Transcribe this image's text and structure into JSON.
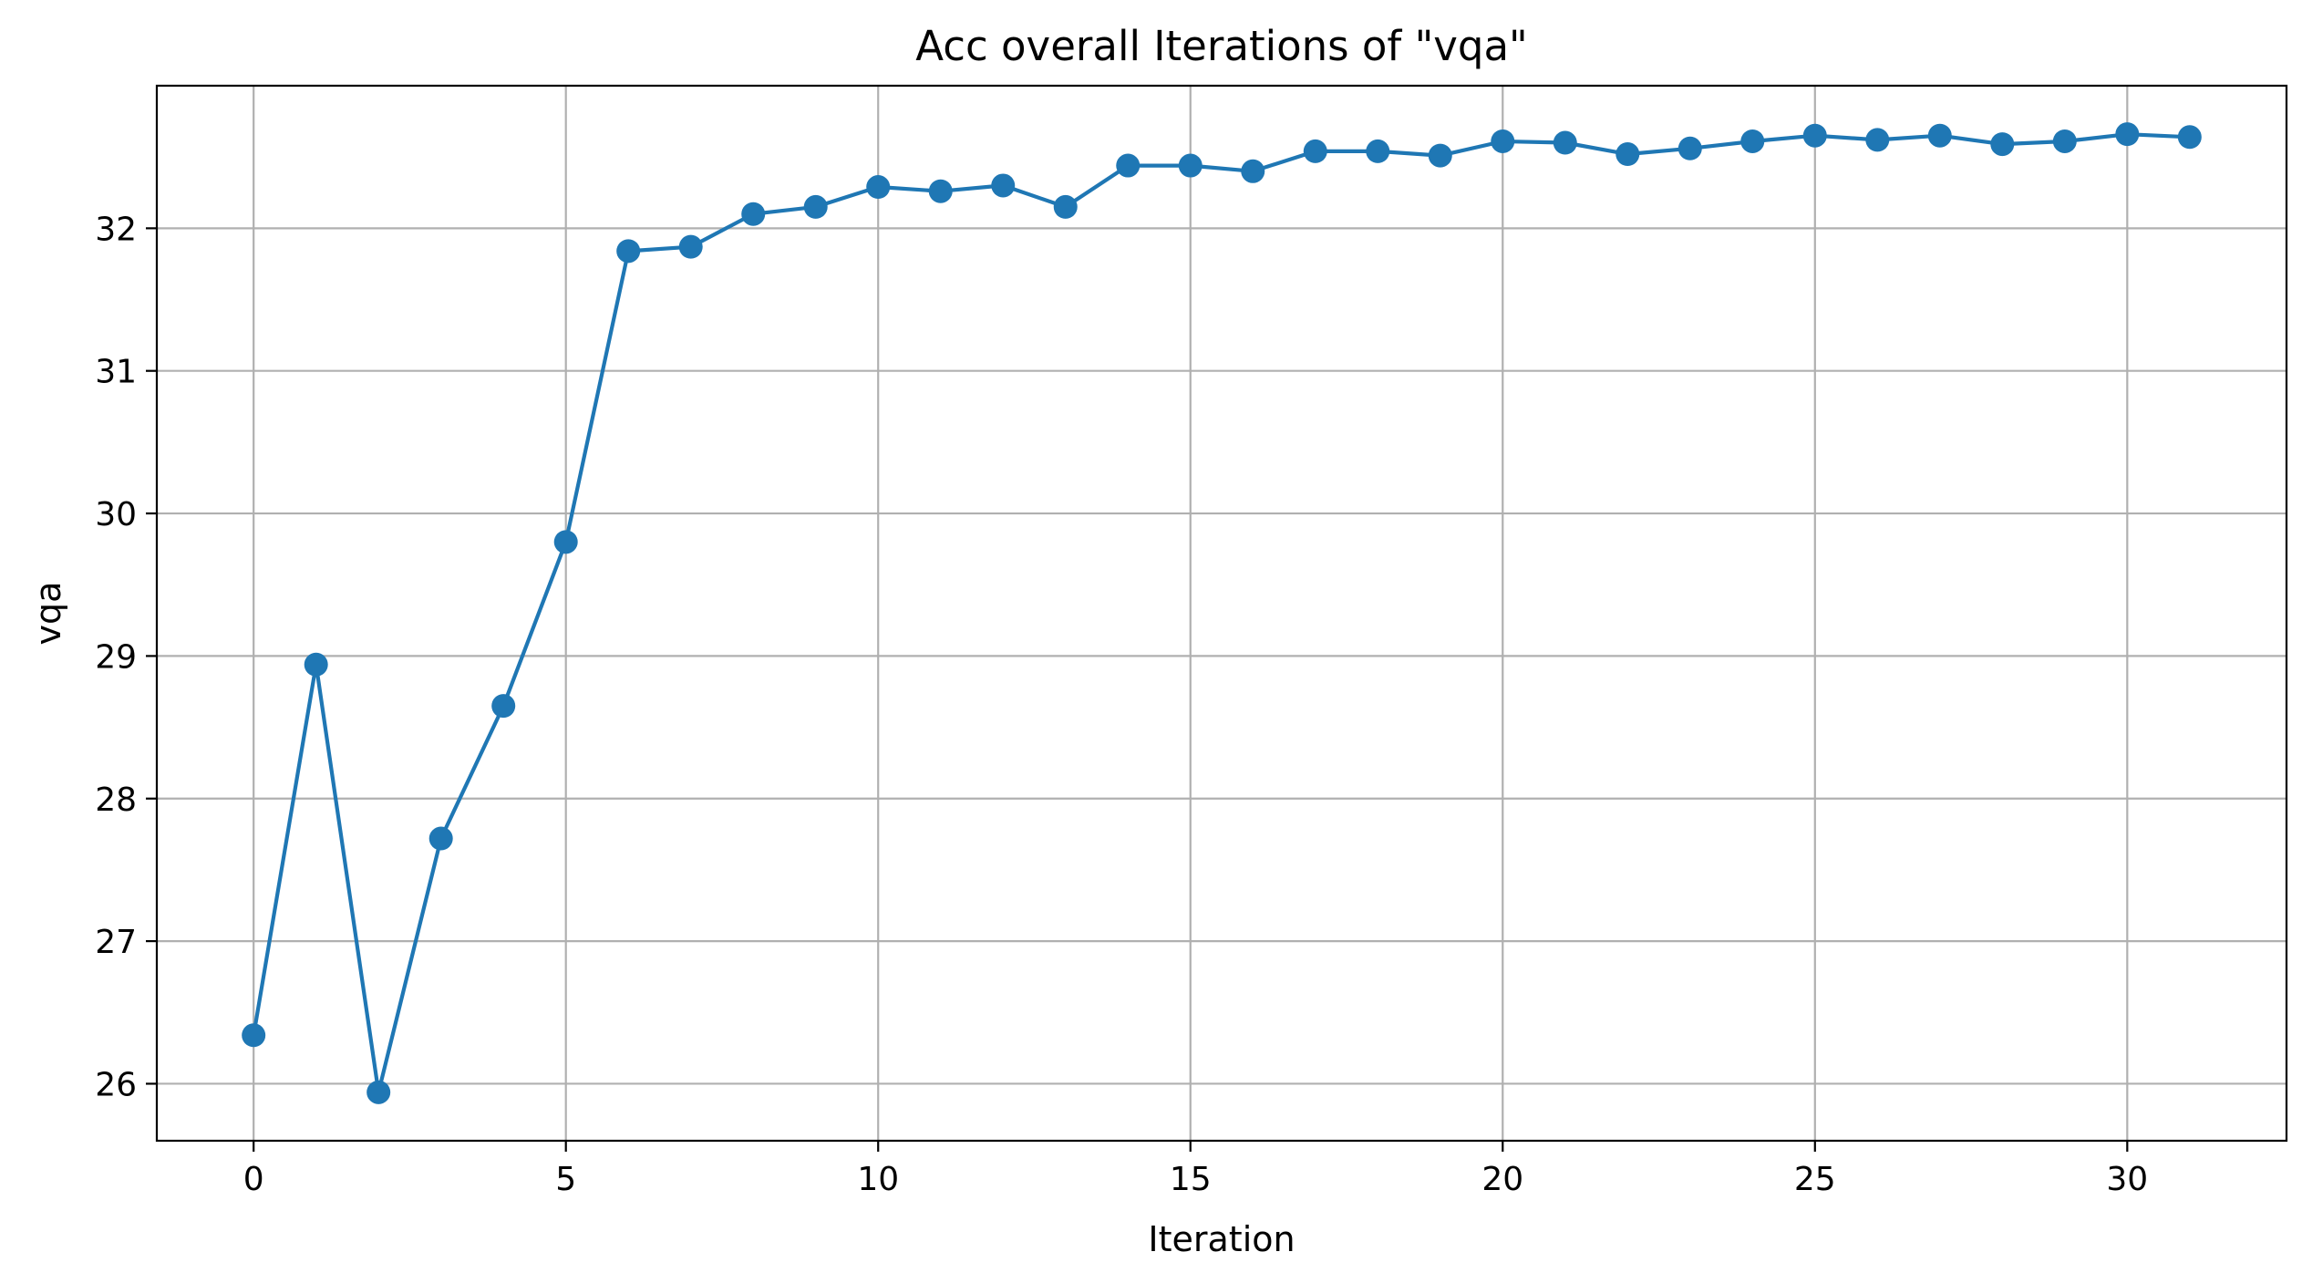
{
  "chart_data": {
    "type": "line",
    "title": "Acc overall Iterations of \"vqa\"",
    "xlabel": "Iteration",
    "ylabel": "vqa",
    "xlim": [
      -1.55,
      32.55
    ],
    "ylim": [
      25.6,
      33.0
    ],
    "xticks": [
      0,
      5,
      10,
      15,
      20,
      25,
      30
    ],
    "yticks": [
      26,
      27,
      28,
      29,
      30,
      31,
      32
    ],
    "grid": true,
    "marker": "circle",
    "color": "#1f77b4",
    "series": [
      {
        "x": [
          0,
          1,
          2,
          3,
          4,
          5,
          6,
          7,
          8,
          9,
          10,
          11,
          12,
          13,
          14,
          15,
          16,
          17,
          18,
          19,
          20,
          21,
          22,
          23,
          24,
          25,
          26,
          27,
          28,
          29,
          30,
          31
        ],
        "y": [
          26.34,
          28.94,
          25.94,
          27.72,
          28.65,
          29.8,
          31.84,
          31.87,
          32.1,
          32.15,
          32.29,
          32.26,
          32.3,
          32.15,
          32.44,
          32.44,
          32.4,
          32.54,
          32.54,
          32.51,
          32.61,
          32.6,
          32.52,
          32.56,
          32.61,
          32.65,
          32.62,
          32.65,
          32.59,
          32.61,
          32.66,
          32.64
        ]
      }
    ]
  }
}
